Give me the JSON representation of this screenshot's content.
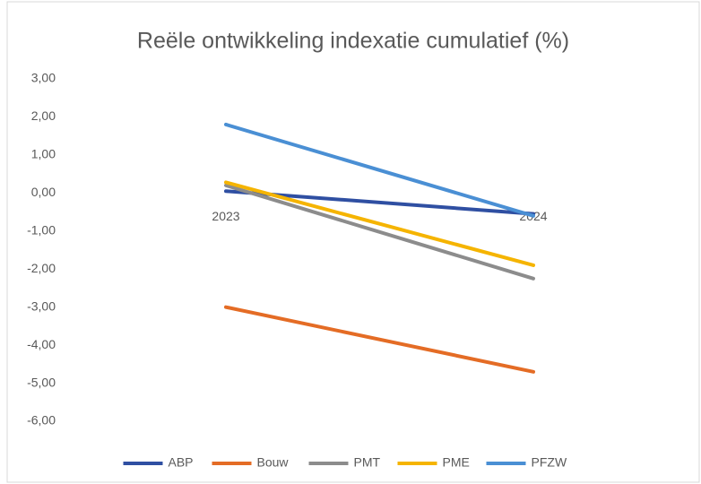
{
  "chart_data": {
    "type": "line",
    "title": "Reële ontwikkeling indexatie cumulatief (%)",
    "categories": [
      "2023",
      "2024"
    ],
    "series": [
      {
        "name": "ABP",
        "color": "#2f4fa2",
        "values": [
          0.05,
          -0.55
        ]
      },
      {
        "name": "Bouw",
        "color": "#e46c25",
        "values": [
          -3.0,
          -4.7
        ]
      },
      {
        "name": "PMT",
        "color": "#8c8c8c",
        "values": [
          0.2,
          -2.25
        ]
      },
      {
        "name": "PME",
        "color": "#f5b400",
        "values": [
          0.28,
          -1.9
        ]
      },
      {
        "name": "PFZW",
        "color": "#4a8fd4",
        "values": [
          1.8,
          -0.6
        ]
      }
    ],
    "ylim": [
      -6,
      3
    ],
    "yticks": [
      {
        "value": 3,
        "label": "3,00"
      },
      {
        "value": 2,
        "label": "2,00"
      },
      {
        "value": 1,
        "label": "1,00"
      },
      {
        "value": 0,
        "label": "0,00"
      },
      {
        "value": -1,
        "label": "-1,00"
      },
      {
        "value": -2,
        "label": "-2,00"
      },
      {
        "value": -3,
        "label": "-3,00"
      },
      {
        "value": -4,
        "label": "-4,00"
      },
      {
        "value": -5,
        "label": "-5,00"
      },
      {
        "value": -6,
        "label": "-6,00"
      }
    ],
    "grid": false,
    "legend": "bottom"
  }
}
